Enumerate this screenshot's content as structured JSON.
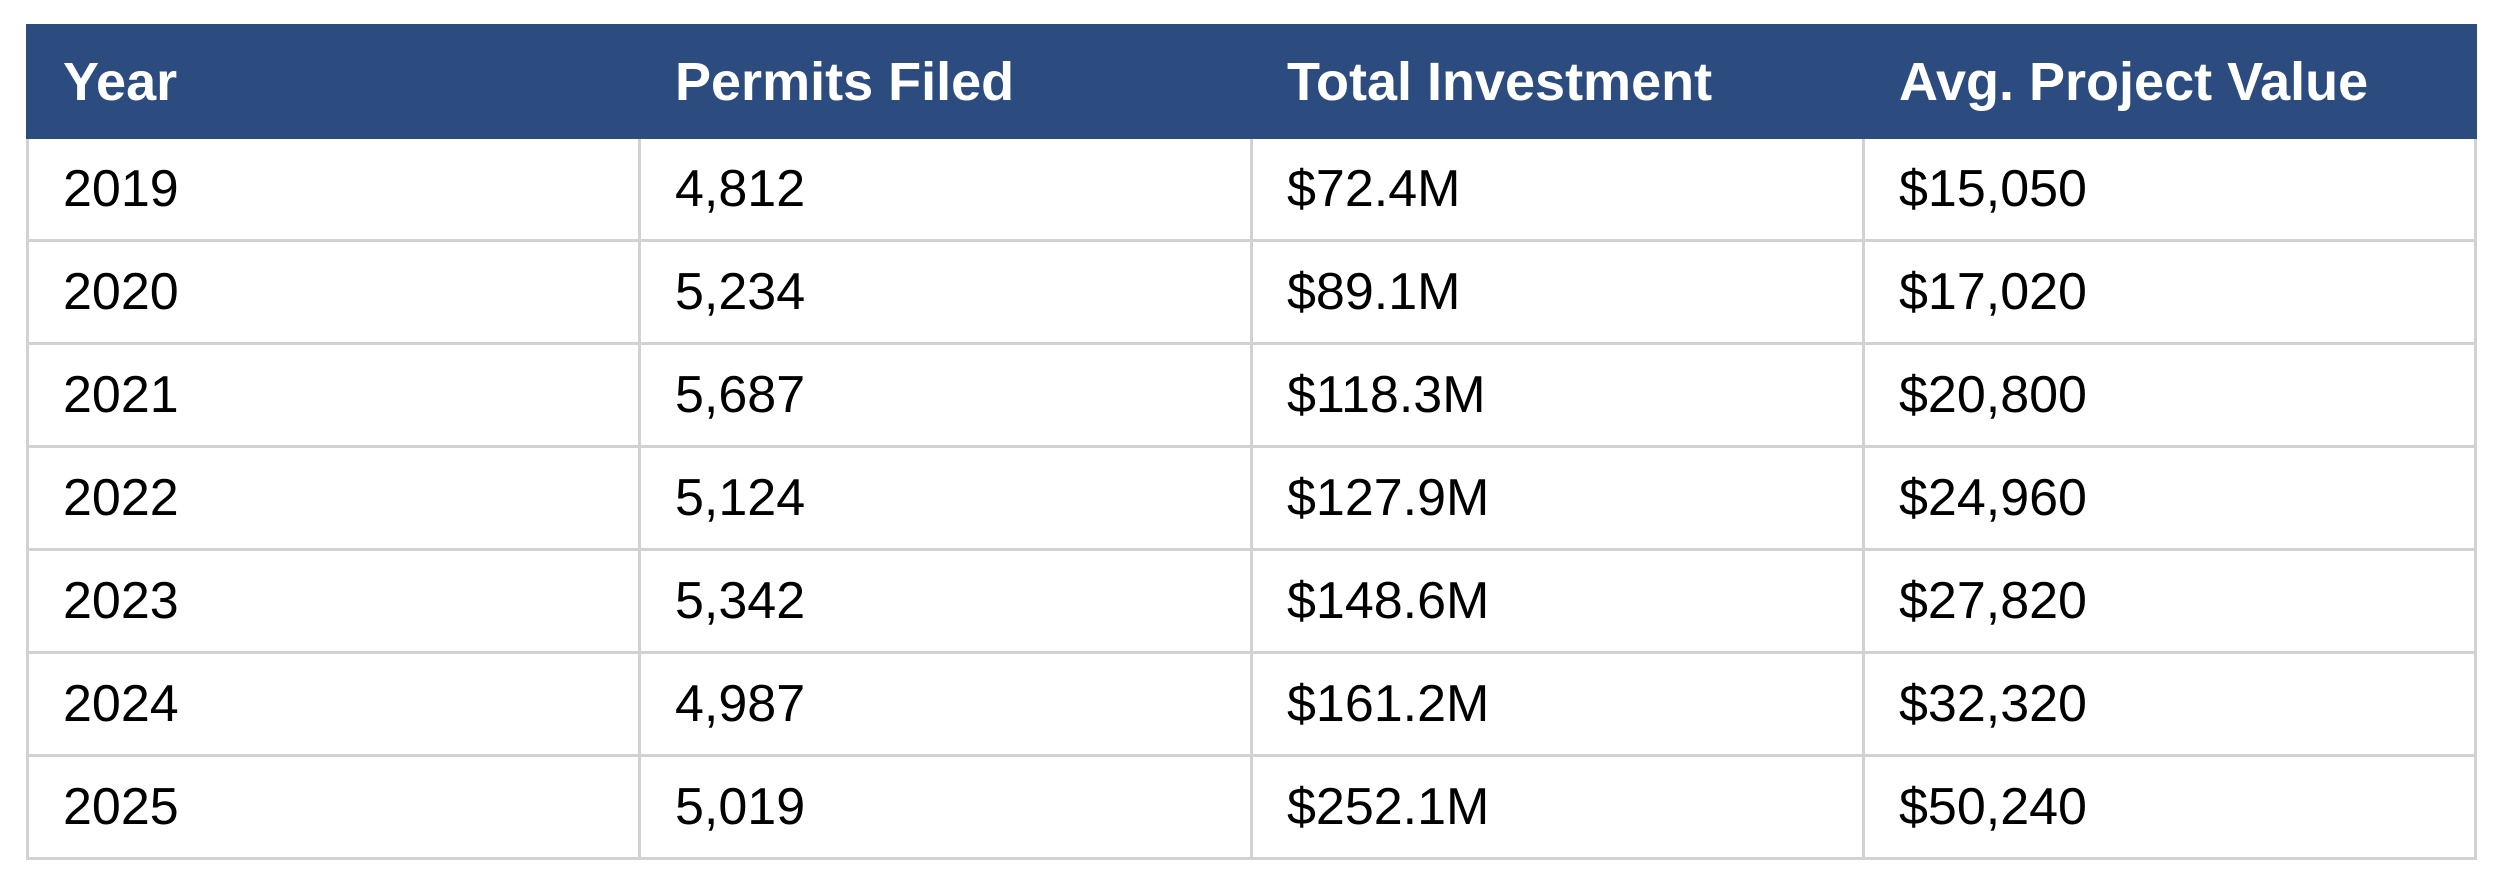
{
  "chart_data": {
    "type": "table",
    "columns": [
      "Year",
      "Permits Filed",
      "Total Investment",
      "Avg. Project Value"
    ],
    "rows": [
      [
        "2019",
        "4,812",
        "$72.4M",
        "$15,050"
      ],
      [
        "2020",
        "5,234",
        "$89.1M",
        "$17,020"
      ],
      [
        "2021",
        "5,687",
        "$118.3M",
        "$20,800"
      ],
      [
        "2022",
        "5,124",
        "$127.9M",
        "$24,960"
      ],
      [
        "2023",
        "5,342",
        "$148.6M",
        "$27,820"
      ],
      [
        "2024",
        "4,987",
        "$161.2M",
        "$32,320"
      ],
      [
        "2025",
        "5,019",
        "$252.1M",
        "$50,240"
      ]
    ]
  },
  "colors": {
    "header_background": "#2c4c80",
    "header_text": "#ffffff",
    "cell_text": "#000000",
    "grid_lines": "#d2d2d2"
  }
}
